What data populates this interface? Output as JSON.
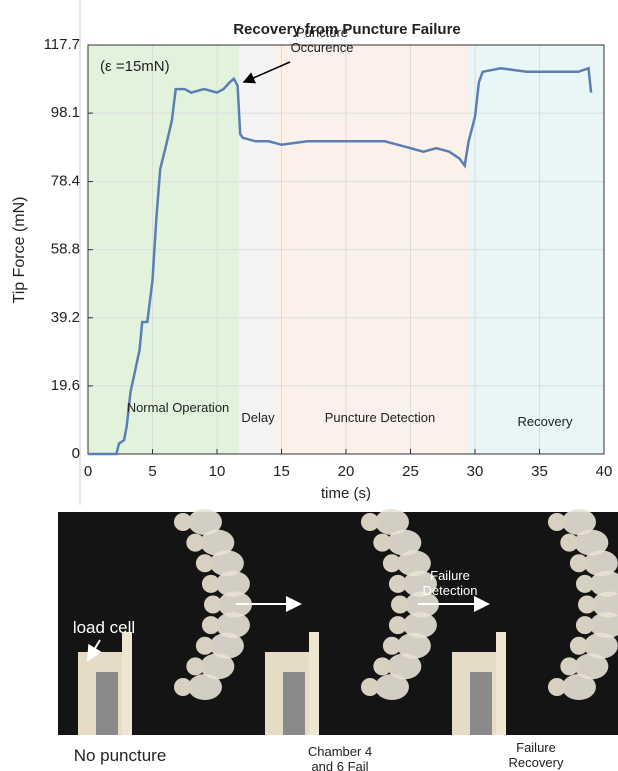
{
  "chart_data": {
    "type": "line",
    "title": "Recovery from Puncture Failure",
    "x_label": "time (s)",
    "y_label": "Tip Force (mN)",
    "x": [
      0,
      1,
      2.2,
      2.4,
      2.8,
      3.0,
      3.3,
      3.6,
      4.0,
      4.2,
      4.6,
      5.0,
      5.3,
      5.6,
      6.0,
      6.5,
      6.8,
      7.5,
      8,
      9,
      10,
      10.5,
      11,
      11.3,
      11.6,
      11.8,
      12,
      13,
      14,
      15,
      17,
      19,
      21,
      23,
      24,
      25,
      26,
      27,
      28,
      28.8,
      29.2,
      29.5,
      30,
      30.3,
      30.6,
      32,
      34,
      36,
      38,
      38.8,
      39
    ],
    "values": [
      0,
      0,
      0,
      3,
      4,
      8,
      18,
      23,
      30,
      38,
      38,
      50,
      68,
      82,
      88,
      96,
      105,
      105,
      104,
      105,
      104,
      105,
      107,
      108,
      106,
      92,
      91,
      90,
      90,
      89,
      90,
      90,
      90,
      90,
      89,
      88,
      87,
      88,
      87,
      85,
      83,
      90,
      97,
      107,
      110,
      111,
      110,
      110,
      110,
      111,
      104
    ],
    "color": "#5b7fb5",
    "xlim": [
      0,
      40
    ],
    "xticks": [
      0,
      5,
      10,
      15,
      20,
      25,
      30,
      35,
      40
    ],
    "ylim": [
      0,
      117.7
    ],
    "yticks": [
      0,
      19.6,
      39.2,
      58.8,
      78.4,
      98.1,
      117.7
    ],
    "grid": true,
    "regions": [
      {
        "label": "Normal Operation",
        "start": 0,
        "end": 11.7,
        "color": "#e2f3dd"
      },
      {
        "label": "Delay",
        "start": 11.7,
        "end": 14.5,
        "color": "#f3f3f5"
      },
      {
        "label": "Puncture Detection",
        "start": 14.5,
        "end": 29.5,
        "color": "#fbf1ea"
      },
      {
        "label": "Recovery",
        "start": 29.5,
        "end": 40,
        "color": "#e8f6f8"
      }
    ],
    "annotations": [
      "(ε =15mN)",
      "Puncture Occurence"
    ]
  },
  "photos": {
    "captions": [
      "No puncture",
      "Chamber 4 and 6 Fail",
      "Failure Recovery"
    ],
    "load_cell": "load cell",
    "failure_detection": "Failure Detection"
  }
}
